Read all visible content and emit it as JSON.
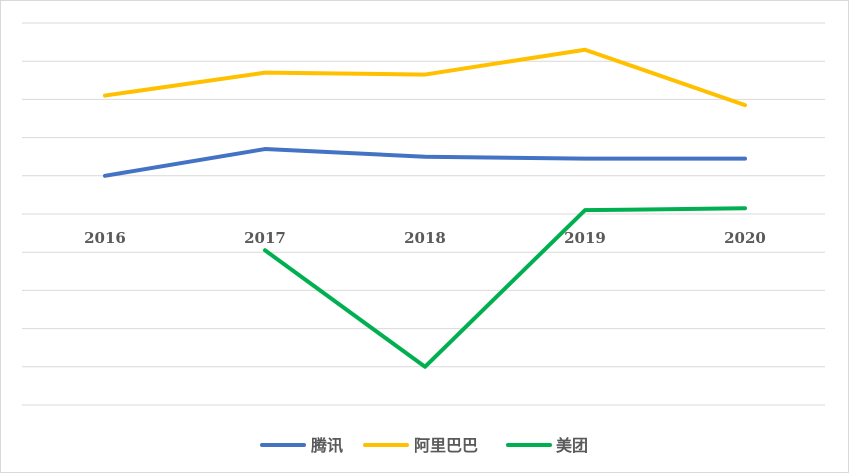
{
  "chart_data": {
    "type": "line",
    "title": "",
    "xlabel": "",
    "ylabel": "",
    "categories": [
      "2016",
      "2017",
      "2018",
      "2019",
      "2020"
    ],
    "ylim": [
      -5,
      5
    ],
    "grid": true,
    "legend_position": "bottom",
    "series": [
      {
        "name": "腾讯",
        "color": "#4472C4",
        "values": [
          1.0,
          1.7,
          1.5,
          1.45,
          1.45
        ]
      },
      {
        "name": "阿里巴巴",
        "color": "#FFC000",
        "values": [
          3.1,
          3.7,
          3.65,
          4.3,
          2.85
        ]
      },
      {
        "name": "美团",
        "color": "#00B050",
        "values": [
          null,
          -0.95,
          -4.0,
          0.1,
          0.15
        ]
      }
    ]
  }
}
